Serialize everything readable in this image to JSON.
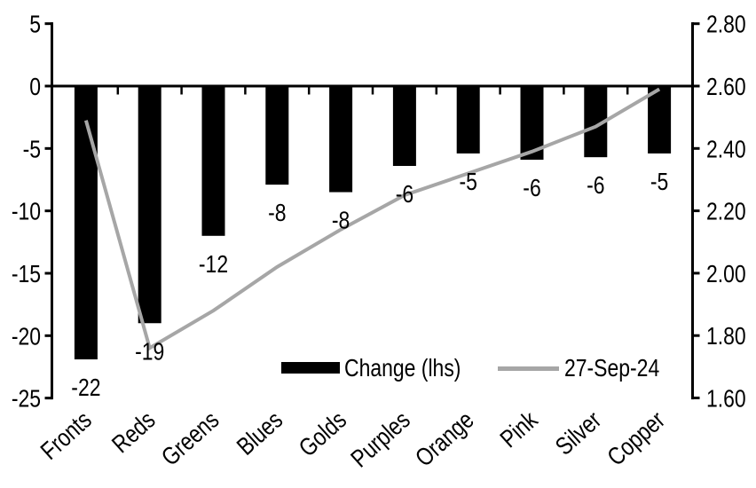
{
  "chart_data": {
    "type": "combo",
    "title": "",
    "background": "#ffffff",
    "axis_color": "#000000",
    "grid": "off",
    "categories": [
      "Fronts",
      "Reds",
      "Greens",
      "Blues",
      "Golds",
      "Purples",
      "Orange",
      "Pink",
      "Silver",
      "Copper"
    ],
    "series": [
      {
        "name": "Change (lhs)",
        "type": "bar",
        "axis": "left",
        "color": "#000000",
        "values": [
          -22,
          -19,
          -12,
          -8,
          -8,
          -6,
          -5,
          -6,
          -6,
          -5
        ],
        "values_precise": [
          -21.9,
          -19,
          -12,
          -7.9,
          -8.5,
          -6.4,
          -5.4,
          -5.9,
          -5.7,
          -5.4
        ],
        "data_labels": [
          "-22",
          "-19",
          "-12",
          "-8",
          "-8",
          "-6",
          "-5",
          "-6",
          "-6",
          "-5"
        ]
      },
      {
        "name": "27-Sep-24",
        "type": "line",
        "axis": "right",
        "color": "#a6a6a6",
        "values": [
          2.49,
          1.76,
          1.88,
          2.02,
          2.14,
          2.25,
          2.32,
          2.39,
          2.47,
          2.59
        ]
      }
    ],
    "left_axis": {
      "min": -25,
      "max": 5,
      "tick_values": [
        5,
        0,
        -5,
        -10,
        -15,
        -20,
        -25
      ],
      "tick_labels": [
        "5",
        "0",
        "-5",
        "-10",
        "-15",
        "-20",
        "-25"
      ]
    },
    "right_axis": {
      "min": 1.6,
      "max": 2.8,
      "tick_values": [
        2.8,
        2.6,
        2.4,
        2.2,
        2.0,
        1.8,
        1.6
      ],
      "tick_labels": [
        "2.80",
        "2.60",
        "2.40",
        "2.20",
        "2.00",
        "1.80",
        "1.60"
      ]
    },
    "legend": {
      "position": "bottom-center-inside",
      "items": [
        {
          "label": "Change (lhs)",
          "swatch": "bar",
          "color": "#000000"
        },
        {
          "label": "27-Sep-24",
          "swatch": "line",
          "color": "#a6a6a6"
        }
      ]
    }
  }
}
